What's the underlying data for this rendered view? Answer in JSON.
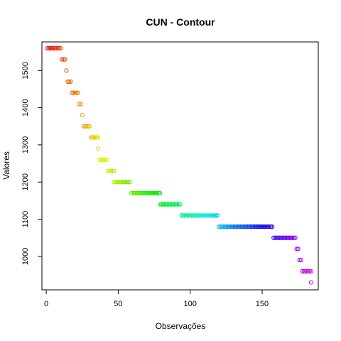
{
  "chart_data": {
    "type": "scatter",
    "title": "CUN - Contour",
    "xlabel": "Observações",
    "ylabel": "Valores",
    "xlim": [
      -3,
      189
    ],
    "ylim": [
      910,
      1577
    ],
    "xticks": [
      "0",
      "50",
      "100",
      "150"
    ],
    "yticks": [
      "1000",
      "1100",
      "1200",
      "1300",
      "1400",
      "1500"
    ],
    "xtick_values": [
      0,
      50,
      100,
      150
    ],
    "ytick_values": [
      1000,
      1100,
      1200,
      1300,
      1400,
      1500
    ],
    "marker": "open-circle",
    "color_map": "rainbow",
    "points_by_level": [
      {
        "x": [
          1,
          10
        ],
        "y": 1560
      },
      {
        "x": [
          11,
          13
        ],
        "y": 1530
      },
      {
        "x": [
          14,
          14
        ],
        "y": 1500
      },
      {
        "x": [
          15,
          17
        ],
        "y": 1470
      },
      {
        "x": [
          18,
          22
        ],
        "y": 1440
      },
      {
        "x": [
          23,
          24
        ],
        "y": 1410
      },
      {
        "x": [
          25,
          25
        ],
        "y": 1380
      },
      {
        "x": [
          26,
          30
        ],
        "y": 1350
      },
      {
        "x": [
          31,
          36
        ],
        "y": 1320
      },
      {
        "x": [
          36,
          36
        ],
        "y": 1290
      },
      {
        "x": [
          37,
          42
        ],
        "y": 1260
      },
      {
        "x": [
          43,
          47
        ],
        "y": 1230
      },
      {
        "x": [
          47,
          58
        ],
        "y": 1200
      },
      {
        "x": [
          59,
          79
        ],
        "y": 1170
      },
      {
        "x": [
          79,
          93
        ],
        "y": 1140
      },
      {
        "x": [
          94,
          119
        ],
        "y": 1110
      },
      {
        "x": [
          120,
          157
        ],
        "y": 1080
      },
      {
        "x": [
          158,
          173
        ],
        "y": 1050
      },
      {
        "x": [
          174,
          175
        ],
        "y": 1020
      },
      {
        "x": [
          176,
          177
        ],
        "y": 990
      },
      {
        "x": [
          178,
          184
        ],
        "y": 960
      },
      {
        "x": [
          184,
          184
        ],
        "y": 930
      }
    ],
    "grid": false,
    "legend": "none"
  }
}
